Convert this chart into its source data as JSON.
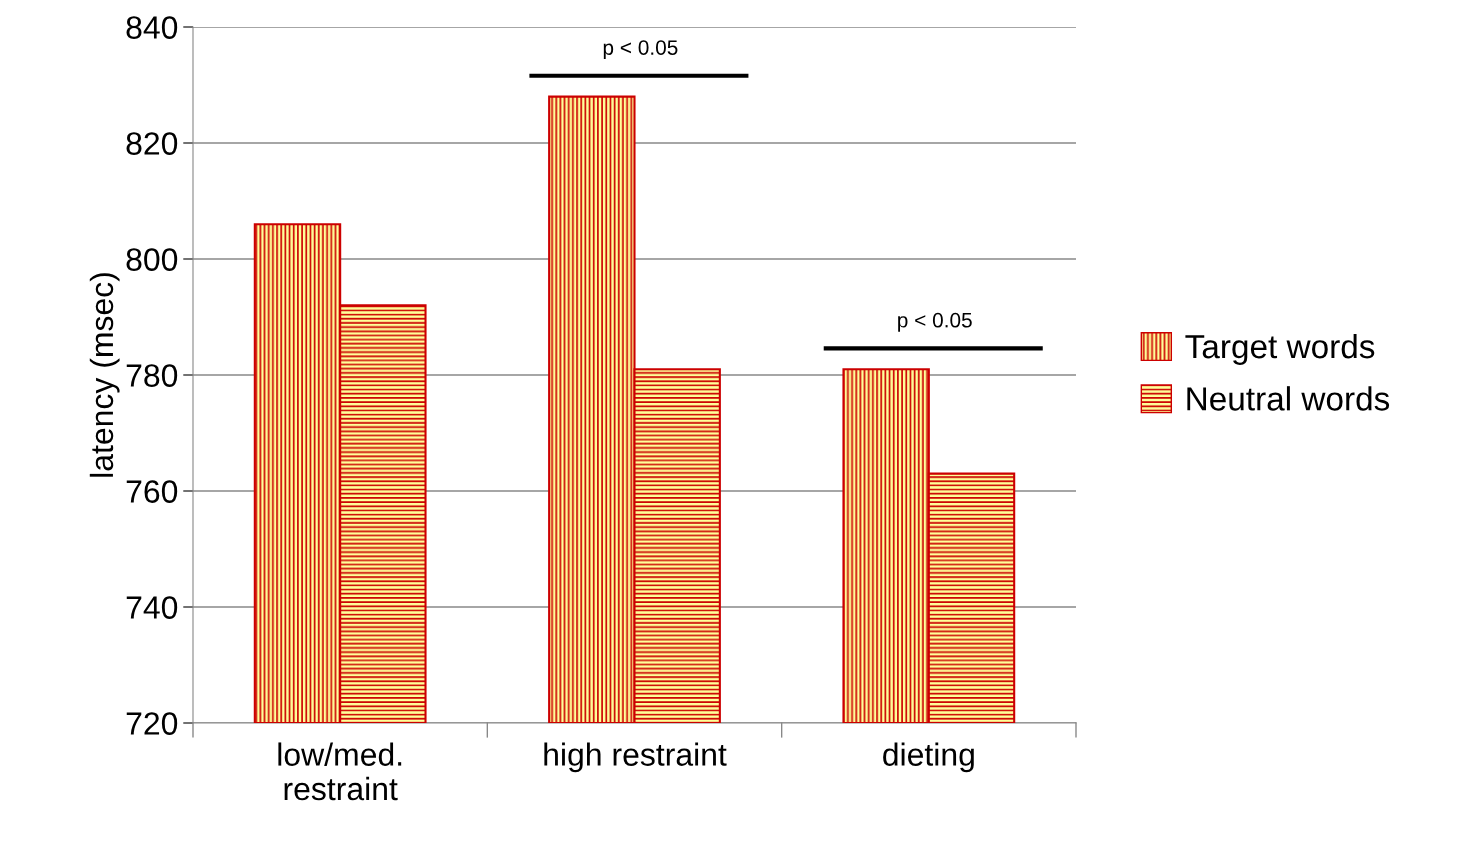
{
  "chart_data": {
    "type": "bar",
    "ylabel": "latency (msec)",
    "categories": [
      "low/med.\nrestraint",
      "high restraint",
      "dieting"
    ],
    "series": [
      {
        "name": "Target words",
        "color": "#cc0000",
        "values": [
          806,
          828,
          781
        ]
      },
      {
        "name": "Neutral words",
        "color": "#cc0000",
        "values": [
          792,
          781,
          763
        ]
      }
    ],
    "ylim": [
      720,
      840
    ],
    "yticks": [
      720,
      740,
      760,
      780,
      800,
      820,
      840
    ],
    "grid": "y",
    "legend": "right",
    "annotations": [
      "p < 0.05",
      "p < 0.05"
    ]
  }
}
